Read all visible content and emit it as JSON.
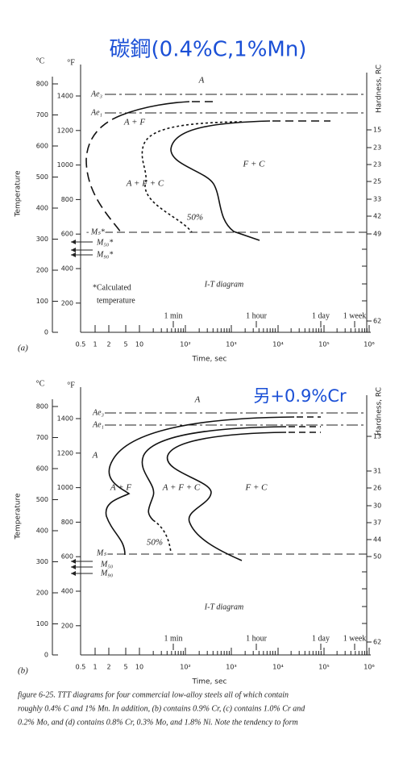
{
  "figure": {
    "panels": [
      {
        "title": "碳鋼(0.4%C,1%Mn)",
        "label": "(a)",
        "y_title": "Temperature",
        "celsius_unit": "°C",
        "fahrenheit_unit": "°F",
        "hardness_title": "Hardness, RC",
        "celsius_ticks": [
          "800",
          "700",
          "600",
          "500",
          "400",
          "300",
          "200",
          "100",
          "0"
        ],
        "fahrenheit_ticks": [
          "1400",
          "1200",
          "1000",
          "800",
          "600",
          "400",
          "200"
        ],
        "hardness_ticks": [
          "15",
          "23",
          "23",
          "25",
          "33",
          "42",
          "49",
          "62"
        ],
        "time_ticks": [
          "0.5",
          "1",
          "2",
          "5",
          "10",
          "10²",
          "10³",
          "10⁴",
          "10⁵",
          "10⁶"
        ],
        "time_markers": [
          "1 min",
          "1 hour",
          "1 day",
          "1 week"
        ],
        "x_title": "Time, sec",
        "lines": [
          "Ae₃",
          "Ae₁",
          "- Mₛ*",
          "M₅₀*",
          "M₉₀*"
        ],
        "regions": [
          "A",
          "A + F",
          "A + F + C",
          "F + C",
          "50%"
        ],
        "notes": [
          "*Calculated",
          "temperature"
        ],
        "diagram_label": "I-T diagram"
      },
      {
        "title": "另+0.9%Cr",
        "label": "(b)",
        "y_title": "Temperature",
        "celsius_unit": "°C",
        "fahrenheit_unit": "°F",
        "hardness_title": "Hardness, RC",
        "celsius_ticks": [
          "800",
          "700",
          "600",
          "500",
          "400",
          "300",
          "200",
          "100",
          "0"
        ],
        "fahrenheit_ticks": [
          "1400",
          "1200",
          "1000",
          "800",
          "600",
          "400",
          "200"
        ],
        "hardness_ticks": [
          "13",
          "31",
          "26",
          "30",
          "37",
          "44",
          "50",
          "62"
        ],
        "time_ticks": [
          "0.5",
          "1",
          "2",
          "5",
          "10",
          "10²",
          "10³",
          "10⁴",
          "10⁵",
          "10⁶"
        ],
        "time_markers": [
          "1 min",
          "1 hour",
          "1 day",
          "1 week"
        ],
        "x_title": "Time, sec",
        "lines": [
          "Ae₃",
          "Ae₁",
          "Mₛ",
          "M₅₀",
          "M₉₀"
        ],
        "regions": [
          "A",
          "A",
          "A + F",
          "A + F + C",
          "F + C",
          "50%"
        ],
        "notes": [],
        "diagram_label": "I-T diagram"
      }
    ],
    "caption": [
      "figure 6-25.  TTT diagrams for four commercial low-alloy steels all of which contain",
      "roughly 0.4% C and 1% Mn. In addition, (b) contains 0.9% Cr, (c) contains 1.0% Cr and",
      "0.2% Mo, and (d) contains 0.8% Cr, 0.3% Mo, and 1.8% Ni. Note the tendency to form"
    ]
  }
}
